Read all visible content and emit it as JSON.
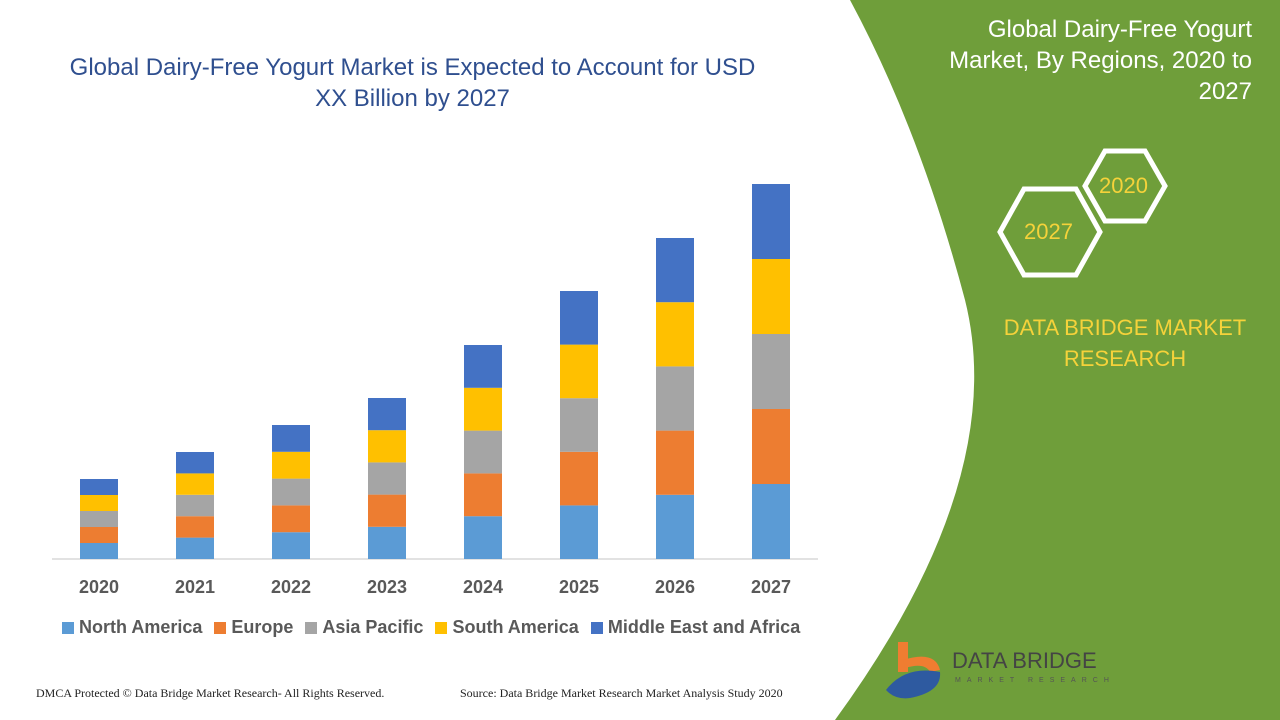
{
  "chart_data": {
    "type": "bar",
    "stacked": true,
    "title": "Global Dairy-Free Yogurt Market is Expected to Account for USD XX Billion by 2027",
    "xlabel": "",
    "ylabel": "",
    "categories": [
      "2020",
      "2021",
      "2022",
      "2023",
      "2024",
      "2025",
      "2026",
      "2027"
    ],
    "series": [
      {
        "name": "North America",
        "color": "#5b9bd5",
        "values": [
          1.6,
          2.14,
          2.68,
          3.22,
          4.28,
          5.36,
          6.42,
          7.5
        ]
      },
      {
        "name": "Europe",
        "color": "#ed7d31",
        "values": [
          1.6,
          2.14,
          2.68,
          3.22,
          4.28,
          5.36,
          6.42,
          7.5
        ]
      },
      {
        "name": "Asia Pacific",
        "color": "#a5a5a5",
        "values": [
          1.6,
          2.14,
          2.68,
          3.22,
          4.28,
          5.36,
          6.42,
          7.5
        ]
      },
      {
        "name": "South America",
        "color": "#ffc000",
        "values": [
          1.6,
          2.14,
          2.68,
          3.22,
          4.28,
          5.36,
          6.42,
          7.5
        ]
      },
      {
        "name": "Middle East and Africa",
        "color": "#4472c4",
        "values": [
          1.6,
          2.14,
          2.68,
          3.22,
          4.28,
          5.36,
          6.42,
          7.5
        ]
      }
    ],
    "ylim": [
      0,
      40
    ],
    "grid": false,
    "legend_position": "bottom"
  },
  "side": {
    "title": "Global Dairy-Free Yogurt Market, By Regions, 2020 to 2027",
    "hex_start": "2020",
    "hex_end": "2027",
    "brand": "DATA BRIDGE MARKET RESEARCH",
    "green": "#6f9e3a"
  },
  "logo": {
    "name": "DATA BRIDGE",
    "sub": "MARKET RESEARCH"
  },
  "footer": {
    "left": "DMCA Protected © Data Bridge Market Research- All Rights Reserved.",
    "right": "Source: Data Bridge Market Research Market Analysis Study 2020"
  }
}
